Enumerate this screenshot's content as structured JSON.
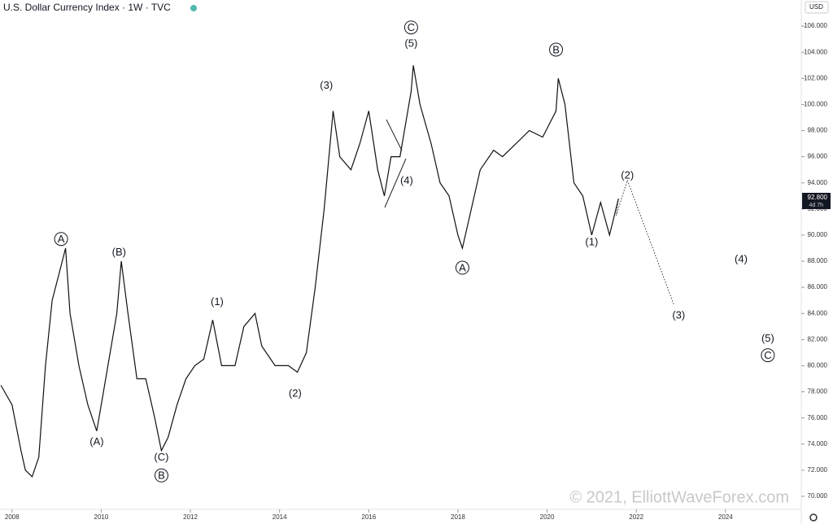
{
  "chart_data": {
    "type": "line",
    "title": "U.S. Dollar Currency Index · 1W · TVC",
    "currency": "USD",
    "last_price": {
      "value": 92.8,
      "label": "92.800"
    },
    "countdown": "4d 7h",
    "watermark": "© 2021, ElliottWaveForex.com",
    "xlim": [
      2007.73,
      2025.7
    ],
    "ylim": [
      69.0,
      108.0
    ],
    "xticks": [
      2008,
      2010,
      2012,
      2014,
      2016,
      2018,
      2020,
      2022,
      2024
    ],
    "yticks": [
      {
        "value": 70,
        "label": "70.000"
      },
      {
        "value": 72,
        "label": "72.000"
      },
      {
        "value": 74,
        "label": "74.000"
      },
      {
        "value": 76,
        "label": "76.000"
      },
      {
        "value": 78,
        "label": "78.000"
      },
      {
        "value": 80,
        "label": "80.000"
      },
      {
        "value": 82,
        "label": "82.000"
      },
      {
        "value": 84,
        "label": "84.000"
      },
      {
        "value": 86,
        "label": "86.000"
      },
      {
        "value": 88,
        "label": "88.000"
      },
      {
        "value": 90,
        "label": "90.000"
      },
      {
        "value": 92,
        "label": "92.000"
      },
      {
        "value": 94,
        "label": "94.000"
      },
      {
        "value": 96,
        "label": "96.000"
      },
      {
        "value": 98,
        "label": "98.000"
      },
      {
        "value": 100,
        "label": "100.000"
      },
      {
        "value": 102,
        "label": "102.000"
      },
      {
        "value": 104,
        "label": "104.000"
      },
      {
        "value": 106,
        "label": "106.000"
      }
    ],
    "grid": false,
    "series": [
      {
        "color": "#111111",
        "x": [
          2007.75,
          2008.0,
          2008.2,
          2008.3,
          2008.45,
          2008.6,
          2008.75,
          2008.9,
          2009.05,
          2009.2,
          2009.3,
          2009.5,
          2009.7,
          2009.9,
          2010.05,
          2010.2,
          2010.35,
          2010.45,
          2010.6,
          2010.8,
          2011.0,
          2011.2,
          2011.35,
          2011.5,
          2011.7,
          2011.9,
          2012.1,
          2012.3,
          2012.5,
          2012.7,
          2013.0,
          2013.2,
          2013.45,
          2013.6,
          2013.9,
          2014.2,
          2014.4,
          2014.6,
          2014.8,
          2015.0,
          2015.2,
          2015.35,
          2015.6,
          2015.8,
          2016.0,
          2016.2,
          2016.35,
          2016.5,
          2016.7,
          2016.95,
          2017.0,
          2017.15,
          2017.4,
          2017.6,
          2017.8,
          2018.0,
          2018.1,
          2018.3,
          2018.5,
          2018.8,
          2019.0,
          2019.3,
          2019.6,
          2019.9,
          2020.2,
          2020.25,
          2020.4,
          2020.6,
          2020.8,
          2021.0,
          2021.2,
          2021.4,
          2021.6
        ],
        "values": [
          78.5,
          77,
          73.5,
          72,
          71.5,
          73,
          80,
          85,
          87,
          89,
          84,
          80,
          77,
          75,
          78,
          81,
          84,
          88,
          84,
          79,
          79,
          76,
          73.5,
          74.5,
          77,
          79,
          80,
          80.5,
          83.5,
          80,
          80,
          83,
          84,
          81.5,
          80,
          80,
          79.5,
          81,
          86,
          92,
          99.5,
          96,
          95,
          97,
          99.5,
          95,
          93,
          96,
          96,
          101,
          103,
          100,
          97,
          94,
          93,
          90,
          89,
          92,
          95,
          96.5,
          96,
          97,
          98,
          97.5,
          99.5,
          102,
          100,
          94,
          93,
          90,
          92.5,
          90,
          92.8
        ]
      },
      {
        "color": "#333333",
        "x": [
          2021.6,
          2021.55,
          2021.8,
          2022.85
        ],
        "values": [
          92.8,
          91.5,
          94.2,
          84.6
        ]
      }
    ],
    "annotations": [
      {
        "text": "A",
        "x": 2009.1,
        "y": 89.7,
        "circled": true
      },
      {
        "text": "(A)",
        "x": 2009.9,
        "y": 74.2,
        "circled": false
      },
      {
        "text": "(B)",
        "x": 2010.4,
        "y": 88.7,
        "circled": false
      },
      {
        "text": "(C)",
        "x": 2011.35,
        "y": 73.0,
        "circled": false
      },
      {
        "text": "B",
        "x": 2011.35,
        "y": 71.6,
        "circled": true
      },
      {
        "text": "(1)",
        "x": 2012.6,
        "y": 84.9,
        "circled": false
      },
      {
        "text": "(2)",
        "x": 2014.35,
        "y": 77.9,
        "circled": false
      },
      {
        "text": "(3)",
        "x": 2015.05,
        "y": 101.5,
        "circled": false
      },
      {
        "text": "(4)",
        "x": 2016.85,
        "y": 94.2,
        "circled": false
      },
      {
        "text": "(5)",
        "x": 2016.95,
        "y": 104.7,
        "circled": false
      },
      {
        "text": "C",
        "x": 2016.95,
        "y": 105.9,
        "circled": true
      },
      {
        "text": "A",
        "x": 2018.1,
        "y": 87.5,
        "circled": true
      },
      {
        "text": "B",
        "x": 2020.2,
        "y": 104.2,
        "circled": true
      },
      {
        "text": "(1)",
        "x": 2021.0,
        "y": 89.5,
        "circled": false
      },
      {
        "text": "(2)",
        "x": 2021.8,
        "y": 94.6,
        "circled": false
      },
      {
        "text": "(3)",
        "x": 2022.95,
        "y": 83.9,
        "circled": false
      },
      {
        "text": "(4)",
        "x": 2024.35,
        "y": 88.2,
        "circled": false
      },
      {
        "text": "(5)",
        "x": 2024.95,
        "y": 82.1,
        "circled": false
      },
      {
        "text": "C",
        "x": 2024.95,
        "y": 80.8,
        "circled": true
      }
    ]
  }
}
